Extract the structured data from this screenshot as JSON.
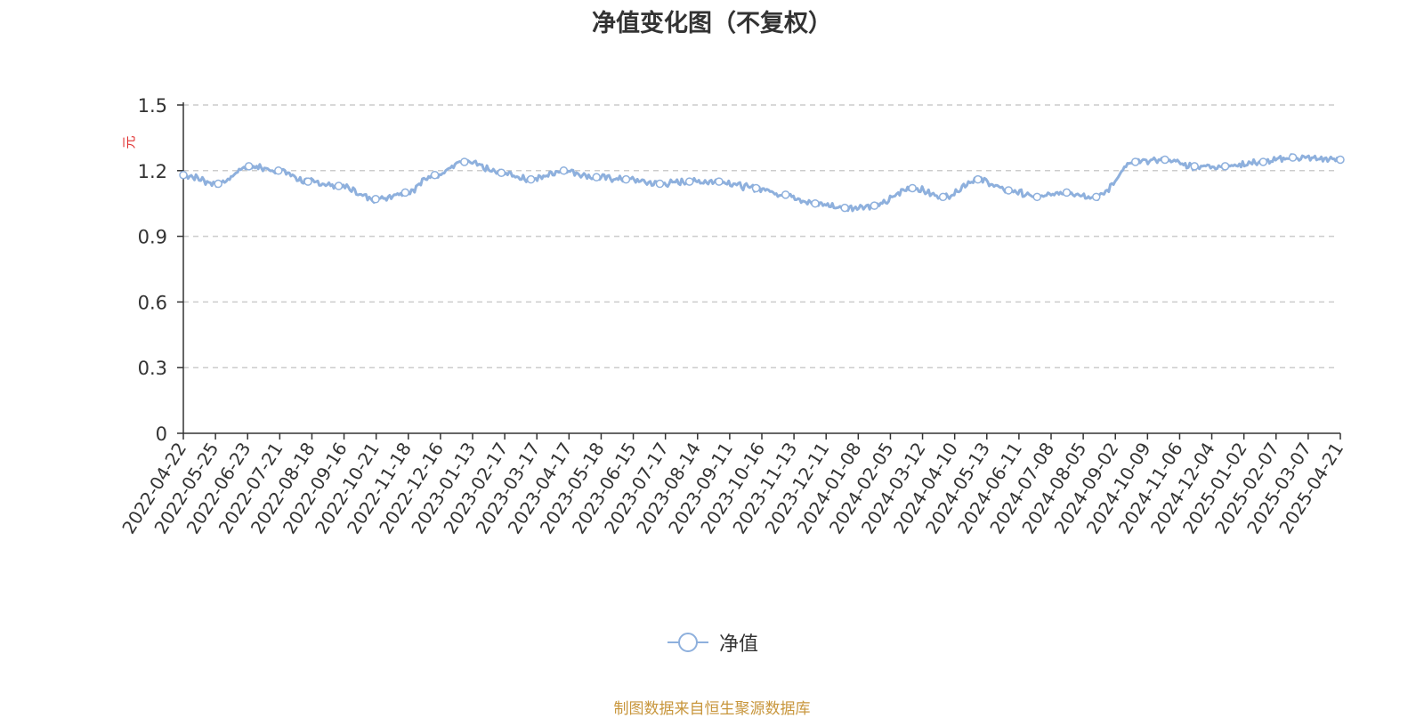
{
  "chart_data": {
    "type": "line",
    "title": "净值变化图（不复权）",
    "ylabel": "元",
    "ylim": [
      0,
      1.5
    ],
    "yticks": [
      0,
      0.3,
      0.6,
      0.9,
      1.2,
      1.5
    ],
    "ytick_labels": [
      "0",
      "0.3",
      "0.6",
      "0.9",
      "1.2",
      "1.5"
    ],
    "x_tick_labels": [
      "2022-04-22",
      "2022-05-25",
      "2022-06-23",
      "2022-07-21",
      "2022-08-18",
      "2022-09-16",
      "2022-10-21",
      "2022-11-18",
      "2022-12-16",
      "2023-01-13",
      "2023-02-17",
      "2023-03-17",
      "2023-04-17",
      "2023-05-18",
      "2023-06-15",
      "2023-07-17",
      "2023-08-14",
      "2023-09-11",
      "2023-10-16",
      "2023-11-13",
      "2023-12-11",
      "2024-01-08",
      "2024-02-05",
      "2024-03-12",
      "2024-04-10",
      "2024-05-13",
      "2024-06-11",
      "2024-07-08",
      "2024-08-05",
      "2024-09-02",
      "2024-10-09",
      "2024-11-06",
      "2024-12-04",
      "2025-01-02",
      "2025-02-07",
      "2025-03-07",
      "2025-04-21"
    ],
    "grid": true,
    "legend_position": "bottom",
    "colors": {
      "line": "#8eb0dd",
      "grid": "#cccccc",
      "axis": "#333333",
      "ylabel": "#e03030"
    },
    "series": [
      {
        "name": "净值",
        "x": [
          "2022-04-22",
          "2022-05-25",
          "2022-06-23",
          "2022-07-21",
          "2022-08-18",
          "2022-09-16",
          "2022-10-21",
          "2022-11-18",
          "2022-12-16",
          "2023-01-13",
          "2023-02-17",
          "2023-03-17",
          "2023-04-17",
          "2023-05-18",
          "2023-06-15",
          "2023-07-17",
          "2023-08-14",
          "2023-09-11",
          "2023-10-16",
          "2023-11-13",
          "2023-12-11",
          "2024-01-08",
          "2024-02-05",
          "2024-03-12",
          "2024-04-10",
          "2024-05-13",
          "2024-06-11",
          "2024-07-08",
          "2024-08-05",
          "2024-09-02",
          "2024-10-09",
          "2024-11-06",
          "2024-12-04",
          "2025-01-02",
          "2025-02-07",
          "2025-03-07",
          "2025-04-21"
        ],
        "values": [
          1.18,
          1.14,
          1.22,
          1.2,
          1.15,
          1.13,
          1.07,
          1.1,
          1.18,
          1.24,
          1.19,
          1.16,
          1.2,
          1.17,
          1.16,
          1.14,
          1.15,
          1.15,
          1.12,
          1.09,
          1.05,
          1.03,
          1.04,
          1.12,
          1.08,
          1.16,
          1.11,
          1.08,
          1.1,
          1.08,
          1.24,
          1.25,
          1.22,
          1.22,
          1.24,
          1.26,
          1.25
        ]
      }
    ]
  },
  "legend": {
    "label": "净值"
  },
  "footer": {
    "source": "制图数据来自恒生聚源数据库"
  }
}
